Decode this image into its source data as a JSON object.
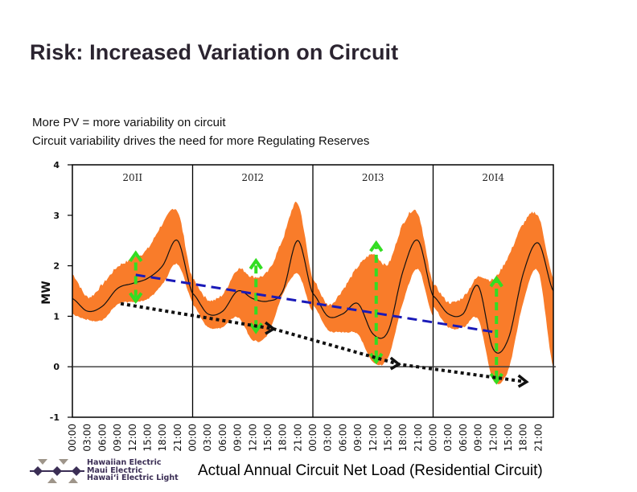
{
  "slide": {
    "title": "Risk: Increased Variation on Circuit",
    "bullets": [
      "More PV = more variability on circuit",
      "Circuit variability drives the need for more Regulating Reserves"
    ],
    "caption": "Actual Annual Circuit Net Load (Residential Circuit)",
    "logo": {
      "lines": [
        "Hawaiian Electric",
        "Maui Electric",
        "Hawai‘i Electric Light"
      ]
    }
  },
  "colors": {
    "band": "#f97c2a",
    "mean_line": "#111111",
    "green_arrow": "#33dd22",
    "blue_trend": "#1a1ab8",
    "black_trend": "#111111"
  },
  "chart_data": {
    "type": "area",
    "title": "",
    "xlabel": "",
    "ylabel": "MW",
    "ylim": [
      -1,
      4
    ],
    "yticks": [
      "4",
      "3",
      "2",
      "1",
      "0",
      "-1"
    ],
    "yticks_values": [
      4,
      3,
      2,
      1,
      0,
      -1
    ],
    "grid": false,
    "panels": [
      "20II",
      "20I2",
      "20I3",
      "20I4"
    ],
    "panel_labels": [
      "2011",
      "2012",
      "2013",
      "2014"
    ],
    "xticks": [
      "00:00",
      "03:00",
      "06:00",
      "09:00",
      "12:00",
      "15:00",
      "18:00",
      "21:00"
    ],
    "hours": [
      0,
      3,
      6,
      9,
      12,
      15,
      18,
      21,
      24
    ],
    "series": [
      {
        "name": "2011",
        "mean": [
          1.35,
          1.1,
          1.2,
          1.55,
          1.65,
          1.75,
          2.0,
          2.5,
          1.45
        ],
        "upper": [
          1.8,
          1.35,
          1.6,
          1.95,
          2.1,
          2.3,
          2.8,
          3.05,
          1.7
        ],
        "lower": [
          1.05,
          0.95,
          0.95,
          1.25,
          1.3,
          1.35,
          1.65,
          2.05,
          1.3
        ]
      },
      {
        "name": "2012",
        "mean": [
          1.45,
          1.05,
          1.1,
          1.5,
          1.35,
          1.3,
          1.5,
          2.5,
          1.45
        ],
        "upper": [
          1.7,
          1.3,
          1.4,
          1.9,
          1.75,
          1.85,
          2.5,
          3.2,
          1.7
        ],
        "lower": [
          1.25,
          0.8,
          0.8,
          1.0,
          0.55,
          0.65,
          1.45,
          1.85,
          1.1
        ]
      },
      {
        "name": "2013",
        "mean": [
          1.45,
          1.0,
          1.05,
          1.25,
          0.65,
          0.7,
          1.9,
          2.5,
          1.4
        ],
        "upper": [
          1.7,
          1.2,
          1.5,
          1.95,
          2.2,
          2.0,
          2.8,
          3.0,
          1.6
        ],
        "lower": [
          1.25,
          0.75,
          0.7,
          0.65,
          0.1,
          0.2,
          1.3,
          1.95,
          1.0
        ]
      },
      {
        "name": "2014",
        "mean": [
          1.4,
          1.05,
          1.05,
          1.6,
          0.35,
          0.55,
          1.85,
          2.45,
          1.5
        ],
        "upper": [
          1.6,
          1.25,
          1.35,
          1.75,
          1.7,
          2.15,
          2.8,
          2.95,
          1.7
        ],
        "lower": [
          1.2,
          0.8,
          0.8,
          0.95,
          -0.25,
          -0.05,
          1.3,
          1.9,
          0.0
        ]
      }
    ],
    "annotations": [
      {
        "type": "variability-arrow",
        "panel": "2011",
        "hour": 12,
        "from": 1.3,
        "to": 2.25
      },
      {
        "type": "variability-arrow",
        "panel": "2012",
        "hour": 12,
        "from": 0.7,
        "to": 2.1
      },
      {
        "type": "variability-arrow",
        "panel": "2013",
        "hour": 12,
        "from": 0.1,
        "to": 2.45
      },
      {
        "type": "variability-arrow",
        "panel": "2014",
        "hour": 12,
        "from": -0.3,
        "to": 1.75
      },
      {
        "type": "trend-dashed-blue",
        "from": {
          "panel": "2011",
          "hour": 12,
          "value": 1.82
        },
        "to": {
          "panel": "2014",
          "hour": 12,
          "value": 0.68
        }
      },
      {
        "type": "trend-dotted-black",
        "from": {
          "panel": "2011",
          "hour": 9,
          "value": 1.25
        },
        "to": {
          "panel": "2014",
          "hour": 18,
          "value": -0.3
        }
      }
    ]
  }
}
